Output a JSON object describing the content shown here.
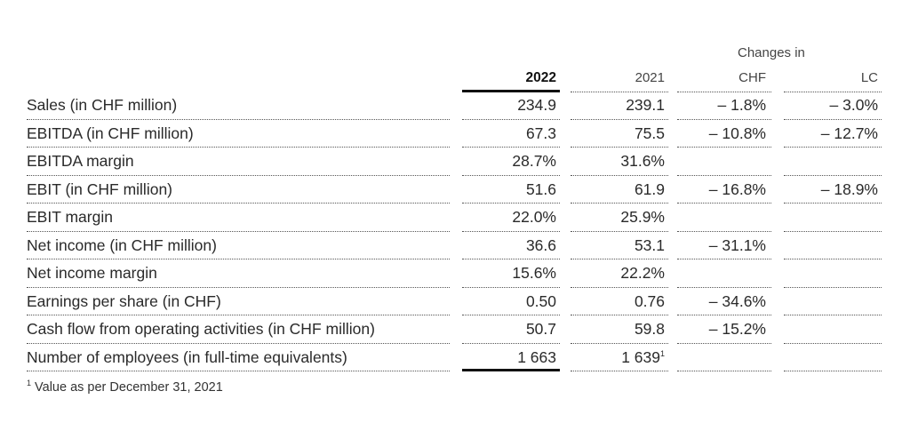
{
  "header": {
    "changes_in": "Changes in",
    "col_2022": "2022",
    "col_2021": "2021",
    "col_chf": "CHF",
    "col_lc": "LC"
  },
  "rows": [
    {
      "label": "Sales (in CHF million)",
      "v2022": "234.9",
      "v2021": "239.1",
      "chf": "– 1.8%",
      "lc": "– 3.0%"
    },
    {
      "label": "EBITDA (in CHF million)",
      "v2022": "67.3",
      "v2021": "75.5",
      "chf": "– 10.8%",
      "lc": "– 12.7%"
    },
    {
      "label": "EBITDA margin",
      "v2022": "28.7%",
      "v2021": "31.6%",
      "chf": "",
      "lc": ""
    },
    {
      "label": "EBIT (in CHF million)",
      "v2022": "51.6",
      "v2021": "61.9",
      "chf": "– 16.8%",
      "lc": "– 18.9%"
    },
    {
      "label": "EBIT margin",
      "v2022": "22.0%",
      "v2021": "25.9%",
      "chf": "",
      "lc": ""
    },
    {
      "label": "Net income (in CHF million)",
      "v2022": "36.6",
      "v2021": "53.1",
      "chf": "– 31.1%",
      "lc": ""
    },
    {
      "label": "Net income margin",
      "v2022": "15.6%",
      "v2021": "22.2%",
      "chf": "",
      "lc": ""
    },
    {
      "label": "Earnings per share (in CHF)",
      "v2022": "0.50",
      "v2021": "0.76",
      "chf": "– 34.6%",
      "lc": ""
    },
    {
      "label": "Cash flow from operating activities (in CHF million)",
      "v2022": "50.7",
      "v2021": "59.8",
      "chf": "– 15.2%",
      "lc": ""
    },
    {
      "label": "Number of employees (in full-time equivalents)",
      "v2022": "1 663",
      "v2021": "1 639",
      "v2021_sup": "1",
      "chf": "",
      "lc": ""
    }
  ],
  "footnote": {
    "marker": "1",
    "text": " Value as per December 31, 2021"
  }
}
